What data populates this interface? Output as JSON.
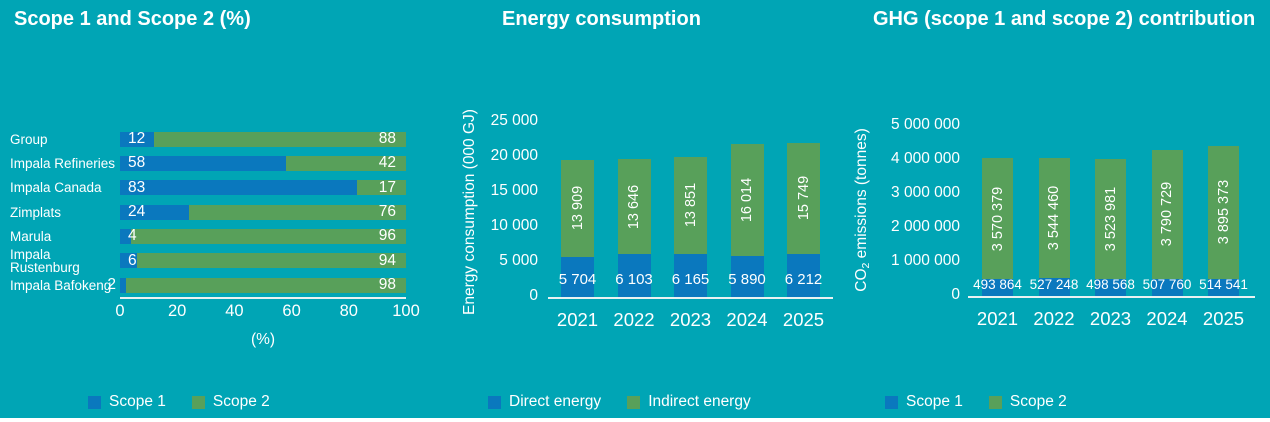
{
  "page": {
    "background": "#00a5b5",
    "text_color": "#ffffff",
    "bottom_strip_color": "#ffffff"
  },
  "colors": {
    "scope1_blue": "#0a78be",
    "scope2_green": "#58a05a",
    "axis_line": "#e9f2f2",
    "label_text": "#ffffff"
  },
  "chart_data": [
    {
      "id": "scope-split",
      "type": "bar",
      "orientation": "horizontal",
      "stacked": true,
      "title": "Scope 1 and Scope 2 (%)",
      "categories": [
        "Group",
        "Impala Refineries",
        "Impala Canada",
        "Zimplats",
        "Marula",
        "Impala Rustenburg",
        "Impala Bafokeng"
      ],
      "series": [
        {
          "name": "Scope 1",
          "color": "#0a78be",
          "values": [
            12,
            58,
            83,
            24,
            4,
            6,
            2
          ]
        },
        {
          "name": "Scope 2",
          "color": "#58a05a",
          "values": [
            88,
            42,
            17,
            76,
            96,
            94,
            98
          ]
        }
      ],
      "xlabel": "(%)",
      "xlim": [
        0,
        100
      ],
      "xticks": [
        0,
        20,
        40,
        60,
        80,
        100
      ],
      "grid": false,
      "legend_position": "bottom"
    },
    {
      "id": "energy-consumption",
      "type": "bar",
      "orientation": "vertical",
      "stacked": true,
      "title": "Energy consumption",
      "categories": [
        "2021",
        "2022",
        "2023",
        "2024",
        "2025"
      ],
      "series": [
        {
          "name": "Direct energy",
          "color": "#0a78be",
          "values": [
            5704,
            6103,
            6165,
            5890,
            6212
          ],
          "labels": [
            "5 704",
            "6 103",
            "6 165",
            "5 890",
            "6 212"
          ],
          "label_style": "horizontal"
        },
        {
          "name": "Indirect energy",
          "color": "#58a05a",
          "values": [
            13909,
            13646,
            13851,
            16014,
            15749
          ],
          "labels": [
            "13 909",
            "13 646",
            "13 851",
            "16 014",
            "15 749"
          ],
          "label_style": "rotated"
        }
      ],
      "ylabel": "Energy consumption (000 GJ)",
      "ylim": [
        0,
        25000
      ],
      "yticks": [
        "25 000",
        "20 000",
        "15 000",
        "10 000",
        "5 000",
        "0"
      ],
      "grid": false,
      "legend_position": "bottom"
    },
    {
      "id": "ghg-contribution",
      "type": "bar",
      "orientation": "vertical",
      "stacked": true,
      "title": "GHG (scope 1 and scope 2) contribution",
      "categories": [
        "2021",
        "2022",
        "2023",
        "2024",
        "2025"
      ],
      "series": [
        {
          "name": "Scope 1",
          "color": "#0a78be",
          "values": [
            493864,
            527248,
            498568,
            507760,
            514541
          ],
          "labels": [
            "493 864",
            "527 248",
            "498 568",
            "507 760",
            "514 541"
          ],
          "label_style": "horizontal"
        },
        {
          "name": "Scope 2",
          "color": "#58a05a",
          "values": [
            3570379,
            3544460,
            3523981,
            3790729,
            3895373
          ],
          "labels": [
            "3 570 379",
            "3 544 460",
            "3 523 981",
            "3 790 729",
            "3 895 373"
          ],
          "label_style": "rotated"
        }
      ],
      "ylabel_prefix": "CO",
      "ylabel_sub": "2",
      "ylabel_suffix": " emissions (tonnes)",
      "ylim": [
        0,
        5000000
      ],
      "yticks": [
        "5 000 000",
        "4 000 000",
        "3 000 000",
        "2 000 000",
        "1 000 000",
        "0"
      ],
      "grid": false,
      "legend_position": "bottom"
    }
  ]
}
